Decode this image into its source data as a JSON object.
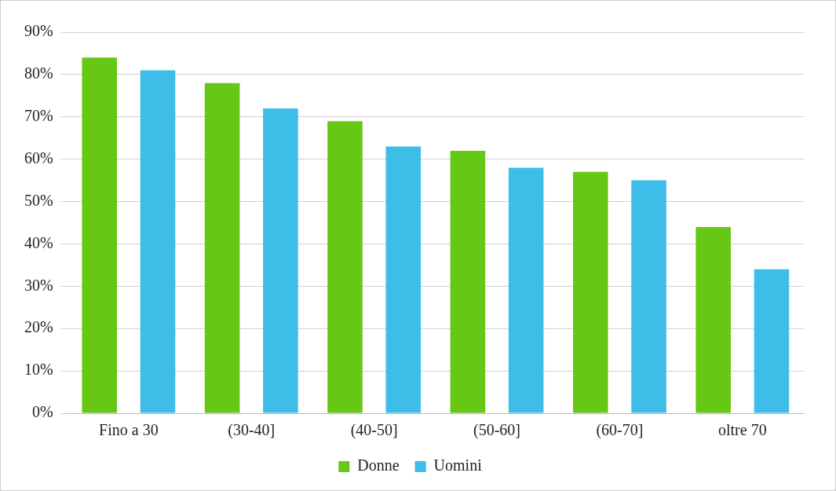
{
  "chart_data": {
    "type": "bar",
    "categories": [
      "Fino a 30",
      "(30-40]",
      "(40-50]",
      "(50-60]",
      "(60-70]",
      "oltre 70"
    ],
    "series": [
      {
        "name": "Donne",
        "color": "#66c814",
        "values": [
          84,
          78,
          69,
          62,
          57,
          44
        ]
      },
      {
        "name": "Uomini",
        "color": "#3dbde8",
        "values": [
          81,
          72,
          63,
          58,
          55,
          34
        ]
      }
    ],
    "ylim": [
      0,
      90
    ],
    "yticks": [
      {
        "value": 0,
        "label": "0%"
      },
      {
        "value": 10,
        "label": "10%"
      },
      {
        "value": 20,
        "label": "20%"
      },
      {
        "value": 30,
        "label": "30%"
      },
      {
        "value": 40,
        "label": "40%"
      },
      {
        "value": 50,
        "label": "50%"
      },
      {
        "value": 60,
        "label": "60%"
      },
      {
        "value": 70,
        "label": "70%"
      },
      {
        "value": 80,
        "label": "80%"
      },
      {
        "value": 90,
        "label": "90%"
      }
    ],
    "grid": "y",
    "legend": "bottom"
  }
}
